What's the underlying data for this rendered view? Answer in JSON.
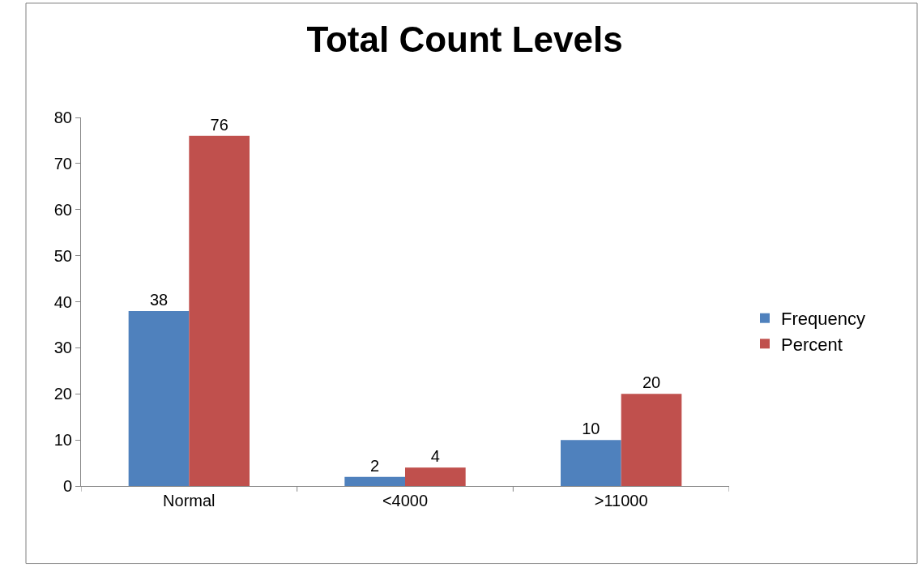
{
  "chart_data": {
    "type": "bar",
    "title": "Total Count Levels",
    "categories": [
      "Normal",
      "<4000",
      ">11000"
    ],
    "series": [
      {
        "name": "Frequency",
        "color": "#4f81bd",
        "values": [
          38,
          2,
          10
        ]
      },
      {
        "name": "Percent",
        "color": "#c0504d",
        "values": [
          76,
          4,
          20
        ]
      }
    ],
    "ylim": [
      0,
      80
    ],
    "yticks": [
      0,
      10,
      20,
      30,
      40,
      50,
      60,
      70,
      80
    ],
    "data_labels": true,
    "legend": "right"
  }
}
